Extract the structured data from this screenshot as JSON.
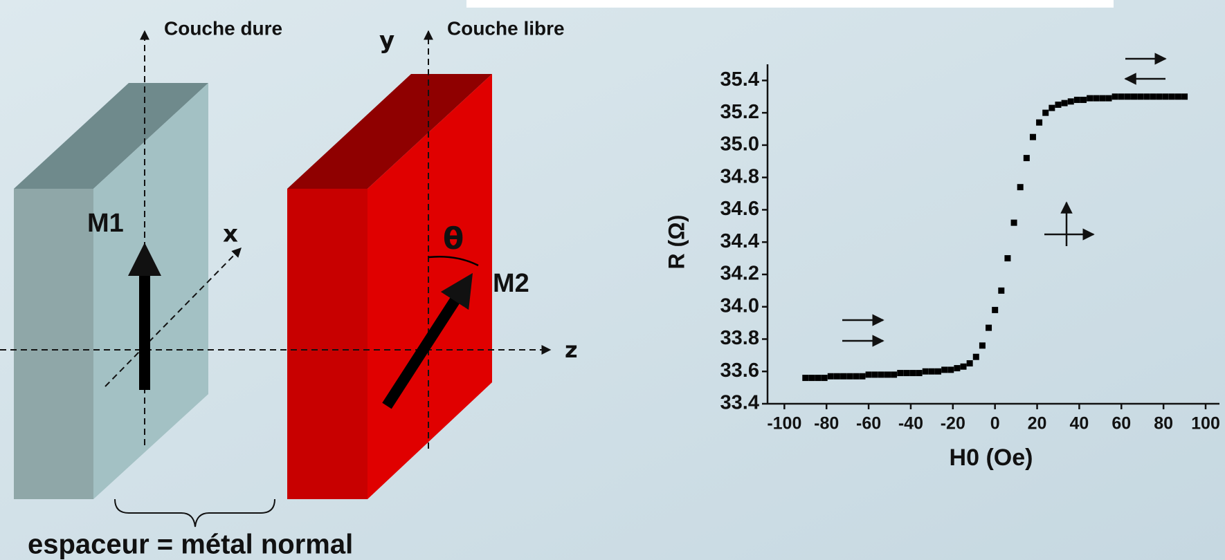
{
  "diagram": {
    "hard_layer": "Couche dure",
    "free_layer": "Couche libre",
    "axis_y": "y",
    "axis_x": "x",
    "axis_z": "z",
    "m1": "M1",
    "m2": "M2",
    "angle": "θ",
    "spacer": "espaceur = métal normal"
  },
  "chart_data": {
    "type": "scatter",
    "x_label": "H0 (Oe)",
    "y_label": "R (Ω)",
    "color": "#000000",
    "xlim": [
      -108,
      100
    ],
    "ylim": [
      33.4,
      35.5
    ],
    "xticks": [
      -100,
      -80,
      -60,
      -40,
      -20,
      0,
      20,
      40,
      60,
      80,
      100
    ],
    "yticks": [
      33.4,
      33.6,
      33.8,
      {
        "value": 34,
        "label": "34.0"
      },
      34.2,
      34.4,
      34.6,
      34.8,
      {
        "value": 35,
        "label": "35.0"
      },
      35.2,
      35.4
    ],
    "x": [
      -90,
      -87,
      -84,
      -81,
      -78,
      -75,
      -72,
      -69,
      -66,
      -63,
      -60,
      -57,
      -54,
      -51,
      -48,
      -45,
      -42,
      -39,
      -36,
      -33,
      -30,
      -27,
      -24,
      -21,
      -18,
      -15,
      -12,
      -9,
      -6,
      -3,
      0,
      3,
      6,
      9,
      12,
      15,
      18,
      21,
      24,
      27,
      30,
      33,
      36,
      39,
      42,
      45,
      48,
      51,
      54,
      57,
      60,
      63,
      66,
      69,
      72,
      75,
      78,
      81,
      84,
      87,
      90
    ],
    "values": [
      33.56,
      33.56,
      33.56,
      33.56,
      33.57,
      33.57,
      33.57,
      33.57,
      33.57,
      33.57,
      33.58,
      33.58,
      33.58,
      33.58,
      33.58,
      33.59,
      33.59,
      33.59,
      33.59,
      33.6,
      33.6,
      33.6,
      33.61,
      33.61,
      33.62,
      33.63,
      33.65,
      33.69,
      33.76,
      33.87,
      33.98,
      34.1,
      34.3,
      34.52,
      34.74,
      34.92,
      35.05,
      35.14,
      35.2,
      35.23,
      35.25,
      35.26,
      35.27,
      35.28,
      35.28,
      35.29,
      35.29,
      35.29,
      35.29,
      35.3,
      35.3,
      35.3,
      35.3,
      35.3,
      35.3,
      35.3,
      35.3,
      35.3,
      35.3,
      35.3,
      35.3
    ]
  }
}
